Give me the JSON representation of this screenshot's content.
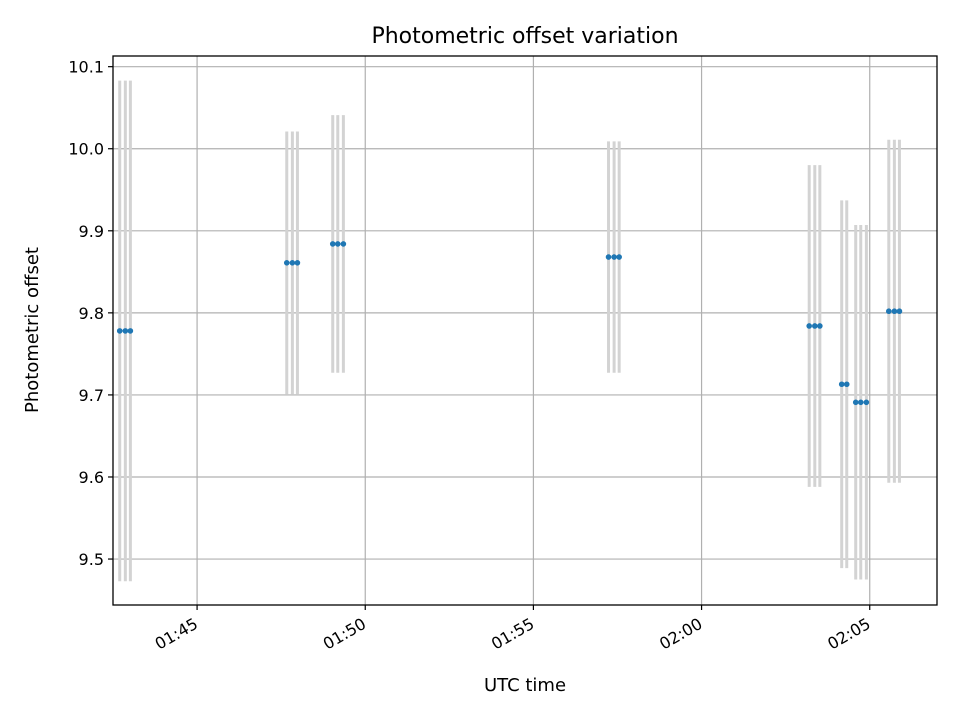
{
  "chart_data": {
    "type": "scatter",
    "title": "Photometric offset variation",
    "xlabel": "UTC time",
    "ylabel": "Photometric offset",
    "x_ticks": [
      "01:45",
      "01:50",
      "01:55",
      "02:00",
      "02:05"
    ],
    "y_ticks": [
      "9.5",
      "9.6",
      "9.7",
      "9.8",
      "9.9",
      "10.0",
      "10.1"
    ],
    "xlim": [
      "01:42:30",
      "02:07:00"
    ],
    "ylim": [
      9.444,
      10.113
    ],
    "grid": true,
    "series": [
      {
        "marker_color": "#1f77b4",
        "errorbar_color": "#d3d3d3",
        "points": [
          {
            "x": "01:42:42",
            "y": 9.778,
            "err": 0.305
          },
          {
            "x": "01:42:52",
            "y": 9.778,
            "err": 0.305
          },
          {
            "x": "01:43:01",
            "y": 9.778,
            "err": 0.305
          },
          {
            "x": "01:47:40",
            "y": 9.861,
            "err": 0.16
          },
          {
            "x": "01:47:50",
            "y": 9.861,
            "err": 0.16
          },
          {
            "x": "01:47:59",
            "y": 9.861,
            "err": 0.16
          },
          {
            "x": "01:49:02",
            "y": 9.884,
            "err": 0.157
          },
          {
            "x": "01:49:11",
            "y": 9.884,
            "err": 0.157
          },
          {
            "x": "01:49:21",
            "y": 9.884,
            "err": 0.157
          },
          {
            "x": "01:57:14",
            "y": 9.868,
            "err": 0.141
          },
          {
            "x": "01:57:24",
            "y": 9.868,
            "err": 0.141
          },
          {
            "x": "01:57:33",
            "y": 9.868,
            "err": 0.141
          },
          {
            "x": "02:03:12",
            "y": 9.784,
            "err": 0.196
          },
          {
            "x": "02:03:22",
            "y": 9.784,
            "err": 0.196
          },
          {
            "x": "02:03:31",
            "y": 9.784,
            "err": 0.196
          },
          {
            "x": "02:04:10",
            "y": 9.713,
            "err": 0.224
          },
          {
            "x": "02:04:19",
            "y": 9.713,
            "err": 0.224
          },
          {
            "x": "02:04:35",
            "y": 9.691,
            "err": 0.216
          },
          {
            "x": "02:04:44",
            "y": 9.691,
            "err": 0.216
          },
          {
            "x": "02:04:54",
            "y": 9.691,
            "err": 0.216
          },
          {
            "x": "02:05:34",
            "y": 9.802,
            "err": 0.209
          },
          {
            "x": "02:05:44",
            "y": 9.802,
            "err": 0.209
          },
          {
            "x": "02:05:53",
            "y": 9.802,
            "err": 0.209
          }
        ]
      }
    ]
  }
}
